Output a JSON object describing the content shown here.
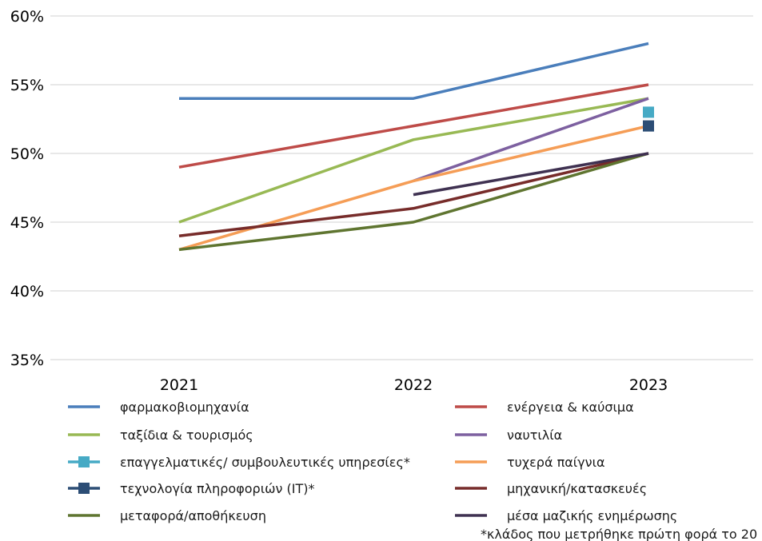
{
  "chart_data": {
    "type": "line",
    "title": "",
    "xlabel": "",
    "ylabel": "",
    "x": [
      "2021",
      "2022",
      "2023"
    ],
    "ylim": [
      35,
      60
    ],
    "yticks": [
      35,
      40,
      45,
      50,
      55,
      60
    ],
    "ytick_labels": [
      "35%",
      "40%",
      "45%",
      "50%",
      "55%",
      "60%"
    ],
    "grid": true,
    "legend_position": "bottom",
    "series": [
      {
        "name": "φαρμακοβιομηχανία",
        "color": "#4a7ebb",
        "marker": "none",
        "values": [
          54,
          54,
          58
        ]
      },
      {
        "name": "ενέργεια & καύσιμα",
        "color": "#be4b48",
        "marker": "none",
        "values": [
          49,
          52,
          55
        ]
      },
      {
        "name": "ταξίδια & τουρισμός",
        "color": "#98b954",
        "marker": "none",
        "values": [
          45,
          51,
          54
        ]
      },
      {
        "name": "ναυτιλία",
        "color": "#7d60a0",
        "marker": "none",
        "values": [
          null,
          48,
          54
        ]
      },
      {
        "name": "επαγγελματικές/ συμβουλευτικές υπηρεσίες*",
        "color": "#46aac5",
        "marker": "square",
        "values": [
          null,
          null,
          53
        ]
      },
      {
        "name": "τυχερά παίγνια",
        "color": "#f59d56",
        "marker": "none",
        "values": [
          43,
          48,
          52
        ]
      },
      {
        "name": "τεχνολογία πληροφοριών (IT)*",
        "color": "#2c4d75",
        "marker": "square",
        "values": [
          null,
          null,
          52
        ]
      },
      {
        "name": "μηχανική/κατασκευές",
        "color": "#772c2a",
        "marker": "none",
        "values": [
          44,
          46,
          50
        ]
      },
      {
        "name": "μεταφορά/αποθήκευση",
        "color": "#5f7530",
        "marker": "none",
        "values": [
          43,
          45,
          50
        ]
      },
      {
        "name": "μέσα μαζικής ενημέρωσης",
        "color": "#3f3151",
        "marker": "none",
        "values": [
          null,
          47,
          50
        ]
      }
    ],
    "footnote": "*κλάδος που μετρήθηκε πρώτη φορά το 20"
  }
}
